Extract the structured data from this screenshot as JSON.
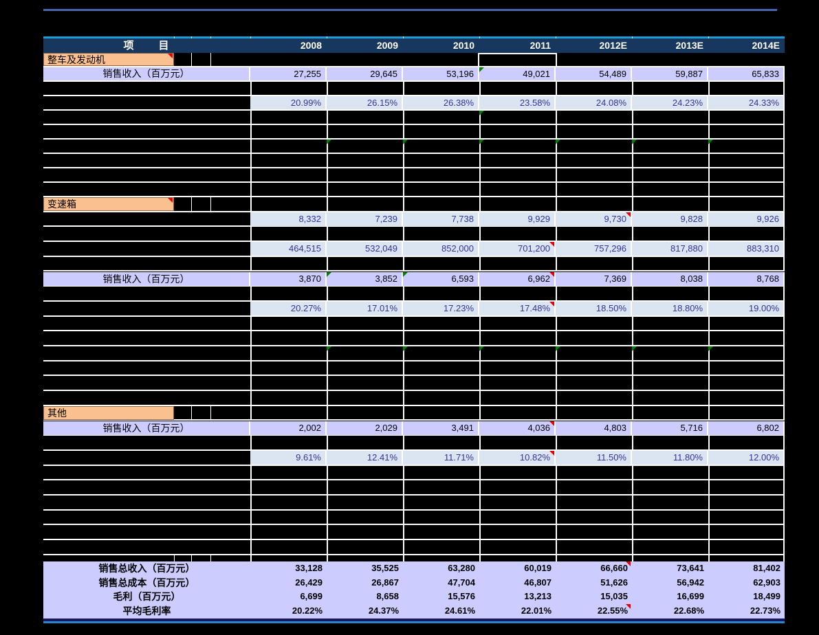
{
  "colors": {
    "background": "#000000",
    "header_navy": "#17375e",
    "lavender": "#ccccff",
    "light_blue": "#dbe5f1",
    "value_blue_text": "#333399",
    "orange_label": "#fac08f",
    "gridline": "#ffffff",
    "top_rule": "#4767b2",
    "header_rule": "#1b9cd9",
    "bottom_rule_navy": "#141a60",
    "bottom_rule_blue": "#2d86cc",
    "comment_marker_red": "#e80000",
    "formula_marker_green": "#008000"
  },
  "header": {
    "label": "项　　目",
    "columns": [
      "2008",
      "2009",
      "2010",
      "2011",
      "2012E",
      "2013E",
      "2014E"
    ]
  },
  "table": {
    "rows": [
      {
        "t": "orange",
        "sec": "s1",
        "label": "整车及发动机",
        "red": true,
        "sel": 3,
        "nogrid": true
      },
      {
        "t": "lav",
        "sec": "s1",
        "label": "销售收入（百万元）",
        "v": [
          "27,255",
          "29,645",
          "53,196",
          "49,021",
          "54,489",
          "59,887",
          "65,833"
        ],
        "g": [
          3
        ],
        "r": []
      },
      {
        "t": "blk",
        "sec": "s1",
        "g": []
      },
      {
        "t": "blue",
        "sec": "s1",
        "v": [
          "20.99%",
          "26.15%",
          "26.38%",
          "23.58%",
          "24.08%",
          "24.23%",
          "24.33%"
        ],
        "g": [],
        "r": []
      },
      {
        "t": "blk",
        "sec": "s1",
        "g": [
          3
        ]
      },
      {
        "t": "blk",
        "sec": "s1",
        "g": []
      },
      {
        "t": "blk",
        "sec": "s1",
        "g": [
          1,
          2,
          3,
          4,
          5,
          6
        ]
      },
      {
        "t": "blk",
        "sec": "s1",
        "g": []
      },
      {
        "t": "blk",
        "sec": "s1",
        "g": []
      },
      {
        "t": "blk",
        "sec": "s1",
        "g": []
      },
      {
        "t": "orange",
        "sec": "s2",
        "label": "变速箱",
        "red": true
      },
      {
        "t": "blue",
        "sec": "s2",
        "v": [
          "8,332",
          "7,239",
          "7,738",
          "9,929",
          "9,730",
          "9,828",
          "9,926"
        ],
        "g": [],
        "r": [
          4
        ]
      },
      {
        "t": "blk",
        "sec": "s2",
        "g": []
      },
      {
        "t": "blue",
        "sec": "s2",
        "v": [
          "464,515",
          "532,049",
          "852,000",
          "701,200",
          "757,296",
          "817,880",
          "883,310"
        ],
        "g": [],
        "r": [
          3
        ]
      },
      {
        "t": "blk",
        "sec": "s2",
        "g": []
      },
      {
        "t": "lav",
        "sec": "s2",
        "label": "销售收入（百万元）",
        "v": [
          "3,870",
          "3,852",
          "6,593",
          "6,962",
          "7,369",
          "8,038",
          "8,768"
        ],
        "g": [
          1,
          2
        ],
        "r": [
          3
        ]
      },
      {
        "t": "blk",
        "sec": "s2",
        "g": []
      },
      {
        "t": "blue",
        "sec": "s2",
        "v": [
          "20.27%",
          "17.01%",
          "17.23%",
          "17.48%",
          "18.50%",
          "18.80%",
          "19.00%"
        ],
        "g": [],
        "r": [
          3
        ]
      },
      {
        "t": "blk",
        "sec": "s2",
        "g": []
      },
      {
        "t": "blk",
        "sec": "s2",
        "g": []
      },
      {
        "t": "blk",
        "sec": "s2",
        "g": [
          1,
          2,
          3,
          4,
          5,
          6
        ]
      },
      {
        "t": "blk",
        "sec": "s2",
        "g": []
      },
      {
        "t": "blk",
        "sec": "s2",
        "g": []
      },
      {
        "t": "blk",
        "sec": "s2",
        "g": []
      },
      {
        "t": "orange",
        "sec": "s3",
        "label": "其他",
        "red": false
      },
      {
        "t": "lav",
        "sec": "s3",
        "label": "销售收入（百万元）",
        "v": [
          "2,002",
          "2,029",
          "3,491",
          "4,036",
          "4,803",
          "5,716",
          "6,802"
        ],
        "g": [],
        "r": [
          3
        ]
      },
      {
        "t": "blk",
        "sec": "s3",
        "g": []
      },
      {
        "t": "blue",
        "sec": "s3",
        "v": [
          "9.61%",
          "12.41%",
          "11.71%",
          "10.82%",
          "11.50%",
          "11.80%",
          "12.00%"
        ],
        "g": [],
        "r": [
          3
        ]
      },
      {
        "t": "blk",
        "sec": "s3",
        "g": []
      },
      {
        "t": "blk",
        "sec": "s3",
        "g": []
      },
      {
        "t": "blk",
        "sec": "s3",
        "g": []
      },
      {
        "t": "blk",
        "sec": "s3",
        "g": []
      },
      {
        "t": "blk",
        "sec": "s3",
        "g": []
      },
      {
        "t": "blk",
        "sec": "s3",
        "g": []
      },
      {
        "t": "pre",
        "sec": "pre"
      }
    ],
    "summary": [
      {
        "label": "销售总收入（百万元）",
        "v": [
          "33,128",
          "35,525",
          "63,280",
          "60,019",
          "66,660",
          "73,641",
          "81,402"
        ],
        "r": [
          4
        ]
      },
      {
        "label": "销售总成本（百万元）",
        "v": [
          "26,429",
          "26,867",
          "47,704",
          "46,807",
          "51,626",
          "56,942",
          "62,903"
        ],
        "r": []
      },
      {
        "label": "毛利（百万元）",
        "v": [
          "6,699",
          "8,658",
          "15,576",
          "13,213",
          "15,035",
          "16,699",
          "18,499"
        ],
        "r": []
      },
      {
        "label": "平均毛利率",
        "v": [
          "20.22%",
          "24.37%",
          "24.61%",
          "22.01%",
          "22.55%",
          "22.68%",
          "22.73%"
        ],
        "r": [
          4
        ]
      }
    ]
  }
}
